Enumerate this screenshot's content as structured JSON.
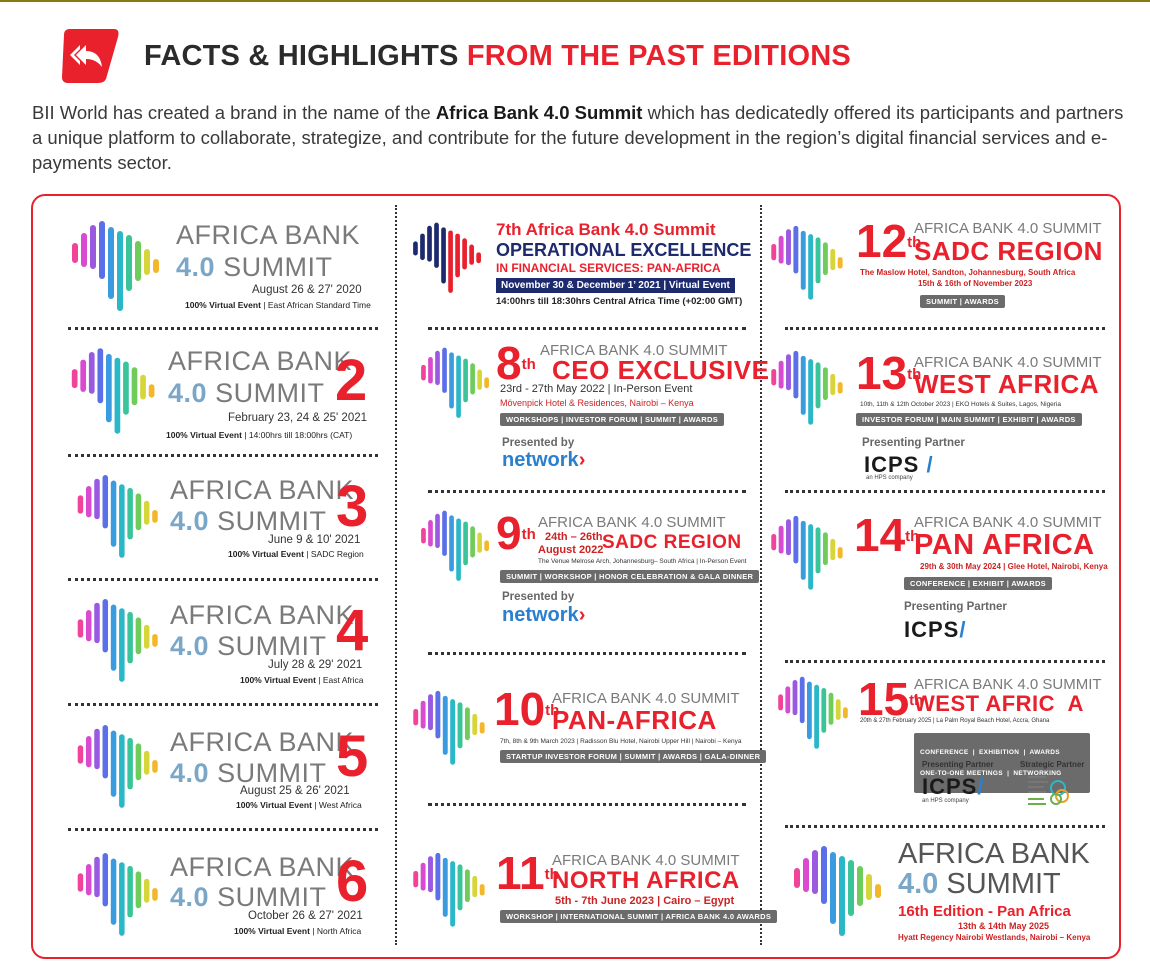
{
  "header": {
    "title_part1": "FACTS & HIGHLIGHTS",
    "title_part2": "FROM THE PAST EDITIONS",
    "intro_before": "BII World has created a brand in the name of the ",
    "intro_bold": "Africa Bank 4.0 Summit",
    "intro_after": " which has dedicatedly offered its participants and partners a unique platform to collaborate, strategize, and contribute for the future development in the region’s digital financial services and e-payments sector.",
    "accent": "#e8212d"
  },
  "brand": {
    "line1": "AFRICA BANK",
    "v": "4.0",
    "summit": "SUMMIT"
  },
  "left_column": [
    {
      "num": "",
      "date": "August 26 & 27' 2020",
      "mode": "100% Virtual Event",
      "region": " | East African Standard Time"
    },
    {
      "num": "2",
      "date": "February 23, 24 & 25' 2021",
      "mode": "100% Virtual Event",
      "region": " |  14:00hrs till 18:00hrs (CAT)"
    },
    {
      "num": "3",
      "date": "June 9 & 10' 2021",
      "mode": "100% Virtual Event",
      "region": " | SADC Region"
    },
    {
      "num": "4",
      "date": "July 28 & 29' 2021",
      "mode": "100% Virtual Event",
      "region": " | East Africa"
    },
    {
      "num": "5",
      "date": "August 25 & 26' 2021",
      "mode": "100% Virtual Event",
      "region": " | West Africa"
    },
    {
      "num": "6",
      "date": "October 26 & 27' 2021",
      "mode": "100% Virtual Event",
      "region": " | North Africa"
    }
  ],
  "seventh": {
    "line1": "7th Africa Bank 4.0 Summit",
    "line2": "OPERATIONAL EXCELLENCE",
    "line3": "IN FINANCIAL SERVICES: PAN-AFRICA",
    "bar": "November 30 & December 1’ 2021 | Virtual Event",
    "time": "14:00hrs till 18:30hrs Central Africa Time (+02:00 GMT)"
  },
  "eighth": {
    "num": "8",
    "sup": "th",
    "line": "AFRICA BANK 4.0 SUMMIT",
    "title": "CEO EXCLUSIVE",
    "date": "23rd - 27th May 2022 | In-Person Event",
    "venue": "Mövenpick Hotel & Residences, Nairobi – Kenya",
    "tags": "WORKSHOPS | INVESTOR FORUM | SUMMIT | AWARDS",
    "presented": "Presented by",
    "partner": "network"
  },
  "ninth": {
    "num": "9",
    "sup": "th",
    "line": "AFRICA BANK 4.0 SUMMIT",
    "date1": "24th – 26th",
    "date2": "August 2022",
    "title": "SADC REGION",
    "venue": "The Venue Melrose Arch, Johannesburg– South Africa | In-Person Event",
    "tags": "SUMMIT | WORKSHOP | HONOR CELEBRATION & GALA DINNER",
    "presented": "Presented by",
    "partner": "network"
  },
  "tenth": {
    "num": "10",
    "sup": "th",
    "line": "AFRICA BANK 4.0 SUMMIT",
    "title": "PAN-AFRICA",
    "venue": "7th, 8th & 9th March 2023 | Radisson Blu Hotel, Nairobi Upper Hill | Nairobi – Kenya",
    "tags": "STARTUP INVESTOR FORUM | SUMMIT | AWARDS | GALA-DINNER"
  },
  "eleventh": {
    "num": "11",
    "sup": "th",
    "line": "AFRICA BANK 4.0 SUMMIT",
    "title": "NORTH AFRICA",
    "date": "5th - 7th June 2023 | Cairo – Egypt",
    "tags": "WORKSHOP | INTERNATIONAL SUMMIT | AFRICA BANK 4.0 AWARDS"
  },
  "twelfth": {
    "num": "12",
    "sup": "th",
    "line": "AFRICA BANK 4.0 SUMMIT",
    "title": "SADC REGION",
    "venue": "The Maslow Hotel, Sandton, Johannesburg, South Africa",
    "date": "15th & 16th of November 2023",
    "tags": "SUMMIT  |  AWARDS"
  },
  "thirteenth": {
    "num": "13",
    "sup": "th",
    "line": "AFRICA BANK 4.0 SUMMIT",
    "title": "WEST AFRICA",
    "venue": "10th, 11th & 12th October 2023 | EKO Hotels & Suites, Lagos, Nigeria",
    "tags": "INVESTOR FORUM | MAIN SUMMIT | EXHIBIT | AWARDS",
    "presenting": "Presenting Partner",
    "partner": "ICPS",
    "partner_sub": "an HPS company"
  },
  "fourteenth": {
    "num": "14",
    "sup": "th",
    "line": "AFRICA BANK 4.0 SUMMIT",
    "title": "PAN AFRICA",
    "venue": "29th & 30th May 2024 | Glee Hotel, Nairobi, Kenya",
    "tags": "CONFERENCE | EXHIBIT | AWARDS",
    "presenting": "Presenting Partner",
    "partner": "ICPS"
  },
  "fifteenth": {
    "num": "15",
    "sup": "th",
    "line": "AFRICA BANK 4.0 SUMMIT",
    "title": "WEST AFRIC  A",
    "venue": "20th & 27th February 2025 | La Palm Royal Beach Hotel, Accra, Ghana",
    "tags1": "CONFERENCE  |  EXHIBITION  |  AWARDS",
    "tags2": "ONE-TO-ONE MEETINGS  |  NETWORKING",
    "presenting": "Presenting Partner",
    "strategic": "Strategic Partner",
    "partner": "ICPS",
    "partner_sub": "an HPS company"
  },
  "sixteenth": {
    "line1": "AFRICA BANK",
    "v": "4.0",
    "summit": "SUMMIT",
    "edition": "16th Edition - Pan Africa",
    "date": "13th & 14th May 2025",
    "venue": "Hyatt Regency Nairobi Westlands, Nairobi – Kenya"
  }
}
